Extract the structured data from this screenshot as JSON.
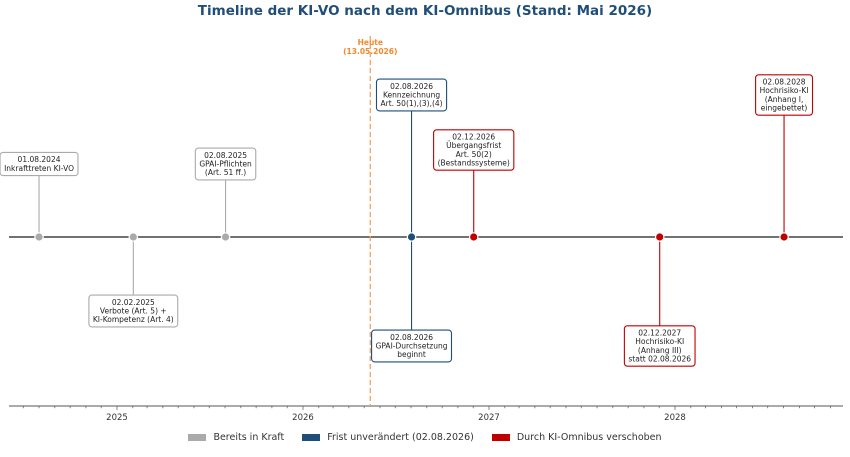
{
  "chart_data": {
    "type": "timeline",
    "title": "Timeline der KI-VO nach dem KI-Omnibus (Stand: Mai 2026)",
    "x_ticks": [
      "2025",
      "2026",
      "2027",
      "2028"
    ],
    "today": {
      "date": "2026-05-13",
      "label": "Heute\n(13.05.2026)",
      "color": "#f0a060"
    },
    "categories": {
      "in_force": {
        "label": "Bereits in Kraft",
        "color": "#aaaaaa"
      },
      "unchanged": {
        "label": "Frist unverändert (02.08.2026)",
        "color": "#1f4e79"
      },
      "postponed": {
        "label": "Durch KI-Omnibus verschoben",
        "color": "#c00000"
      }
    },
    "events": [
      {
        "date": "2024-08-01",
        "category": "in_force",
        "side": "above",
        "level": 1,
        "label": "01.08.2024\nInkrafttreten KI-VO"
      },
      {
        "date": "2025-02-02",
        "category": "in_force",
        "side": "below",
        "level": 1,
        "label": "02.02.2025\nVerbote (Art. 5) +\nKI-Kompetenz (Art. 4)"
      },
      {
        "date": "2025-08-02",
        "category": "in_force",
        "side": "above",
        "level": 1,
        "label": "02.08.2025\nGPAI-Pflichten\n(Art. 51 ff.)"
      },
      {
        "date": "2026-08-02",
        "category": "unchanged",
        "side": "above",
        "level": 3,
        "label": "02.08.2026\nKennzeichnung\nArt. 50(1),(3),(4)"
      },
      {
        "date": "2026-08-02",
        "category": "unchanged",
        "side": "below",
        "level": 2,
        "label": "02.08.2026\nGPAI-Durchsetzung\nbeginnt"
      },
      {
        "date": "2026-12-02",
        "category": "postponed",
        "side": "above",
        "level": 2,
        "label": "02.12.2026\nÜbergangsfrist\nArt. 50(2)\n(Bestandssysteme)"
      },
      {
        "date": "2027-12-02",
        "category": "postponed",
        "side": "below",
        "level": 2,
        "label": "02.12.2027\nHochrisiko-KI\n(Anhang III)\nstatt 02.08.2026"
      },
      {
        "date": "2028-08-02",
        "category": "postponed",
        "side": "above",
        "level": 3,
        "label": "02.08.2028\nHochrisiko-KI\n(Anhang I,\neingebettet)"
      }
    ]
  }
}
